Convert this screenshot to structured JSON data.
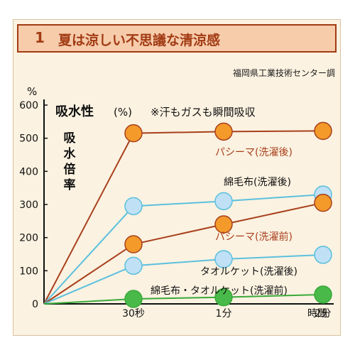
{
  "header": {
    "number": "1",
    "title": "夏は涼しい不思議な清涼感"
  },
  "source": "福岡県工業技術センター調",
  "colors": {
    "pasima": "#a8401d",
    "marker_orange": "#f39a2a",
    "cotton": "#5bc0de",
    "marker_blue": "#bfe0f5",
    "towel": "#3aa93a",
    "marker_green": "#49ba49"
  },
  "chart_data": {
    "type": "line",
    "title": "吸水性",
    "title_unit": "(%)",
    "note": "※汗もガスも瞬間吸収",
    "ylabel": "吸水倍率",
    "y_unit": "%",
    "xlabel": "時間",
    "ylim": [
      0,
      600
    ],
    "yticks": [
      0,
      100,
      200,
      300,
      400,
      500,
      600
    ],
    "categories": [
      "0",
      "30秒",
      "1分",
      "2分"
    ],
    "x_tick_labels": [
      "30秒",
      "1分",
      "2分"
    ],
    "series": [
      {
        "name": "パシーマ(洗濯後)",
        "values": [
          0,
          515,
          520,
          522
        ],
        "line_color": "#a8401d",
        "marker_color": "#f39a2a"
      },
      {
        "name": "綿毛布(洗濯後)",
        "values": [
          0,
          295,
          310,
          330
        ],
        "line_color": "#5bc0de",
        "marker_color": "#bfe0f5"
      },
      {
        "name": "パシーマ(洗濯前)",
        "values": [
          0,
          180,
          240,
          305
        ],
        "line_color": "#a8401d",
        "marker_color": "#f39a2a"
      },
      {
        "name": "タオルケット(洗濯後)",
        "values": [
          0,
          115,
          135,
          148
        ],
        "line_color": "#5bc0de",
        "marker_color": "#bfe0f5"
      },
      {
        "name": "綿毛布・タオルケット(洗濯前)",
        "values": [
          0,
          15,
          20,
          28
        ],
        "line_color": "#3aa93a",
        "marker_color": "#49ba49"
      }
    ],
    "grid": false,
    "legend": "inline labels"
  }
}
